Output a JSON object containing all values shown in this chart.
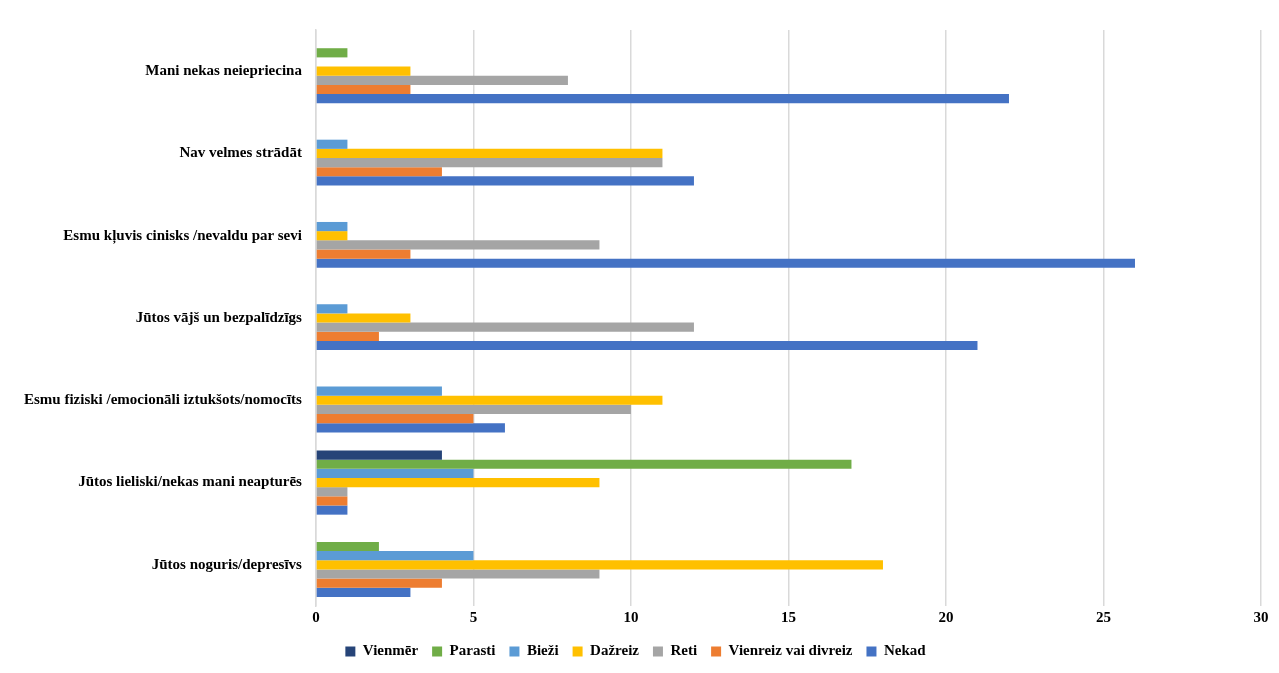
{
  "chart_data": {
    "type": "bar",
    "orientation": "horizontal",
    "categories": [
      "Mani nekas neiepriecina",
      "Nav velmes strādāt",
      "Esmu kļuvis cinisks /nevaldu par sevi",
      "Jūtos vājš un bezpalīdzīgs",
      "Esmu fiziski /emocionāli iztukšots/nomocīts",
      "Jūtos lieliski/nekas mani neapturēs",
      "Jūtos noguris/depresīvs"
    ],
    "series": [
      {
        "name": "Vienmēr",
        "color": "#264478",
        "values": [
          null,
          null,
          null,
          null,
          null,
          4,
          null
        ]
      },
      {
        "name": "Parasti",
        "color": "#70ad47",
        "values": [
          1,
          null,
          null,
          null,
          null,
          17,
          2
        ]
      },
      {
        "name": "Bieži",
        "color": "#5b9bd5",
        "values": [
          null,
          1,
          1,
          1,
          4,
          5,
          5
        ]
      },
      {
        "name": "Dažreiz",
        "color": "#ffc000",
        "values": [
          3,
          11,
          1,
          3,
          11,
          9,
          18
        ]
      },
      {
        "name": "Reti",
        "color": "#a5a5a5",
        "values": [
          8,
          11,
          9,
          12,
          10,
          1,
          9
        ]
      },
      {
        "name": "Vienreiz vai divreiz",
        "color": "#ed7d31",
        "values": [
          3,
          4,
          3,
          2,
          5,
          1,
          4
        ]
      },
      {
        "name": "Nekad",
        "color": "#4472c4",
        "values": [
          22,
          12,
          26,
          21,
          6,
          1,
          3
        ]
      }
    ],
    "xlim": [
      0,
      30
    ],
    "xticks": [
      0,
      5,
      10,
      15,
      20,
      25,
      30
    ],
    "grid": "x",
    "legend": "bottom"
  }
}
